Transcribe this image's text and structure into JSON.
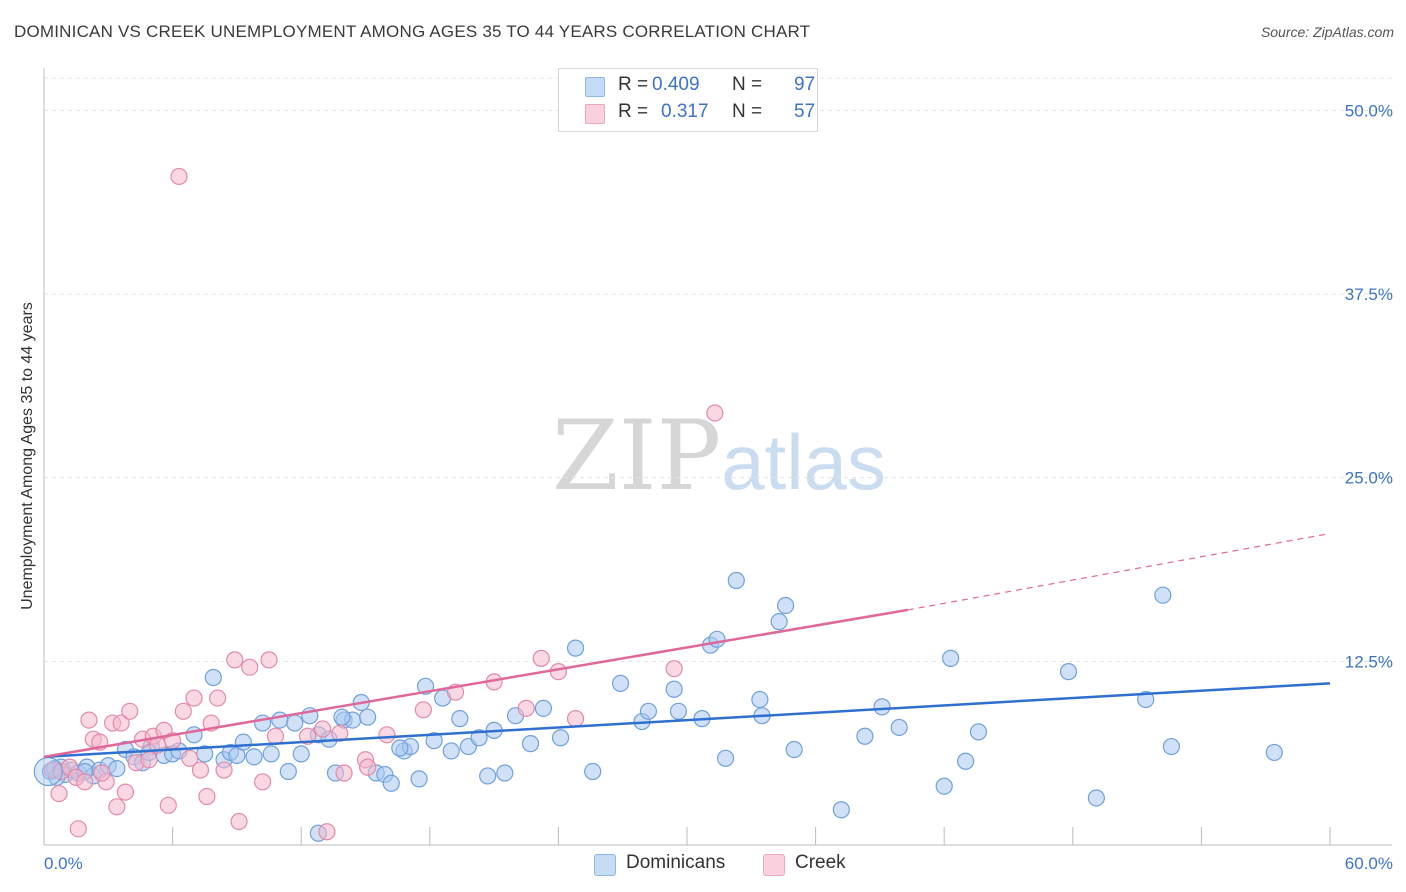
{
  "title": "DOMINICAN VS CREEK UNEMPLOYMENT AMONG AGES 35 TO 44 YEARS CORRELATION CHART",
  "source": "Source: ZipAtlas.com",
  "watermark": {
    "zip": "ZIP",
    "atlas": "atlas"
  },
  "legend": {
    "rows": [
      {
        "r_label": "R = ",
        "r_value": "0.409",
        "n_label": "N = ",
        "n_value": "97",
        "color": "#a9c9f0"
      },
      {
        "r_label": "R = ",
        "r_value": "0.317",
        "n_label": "N = ",
        "n_value": "57",
        "color": "#f4b8cc"
      }
    ]
  },
  "bottom_legend": [
    {
      "label": "Dominicans",
      "color": "#a9c9f0"
    },
    {
      "label": "Creek",
      "color": "#f4b8cc"
    }
  ],
  "chart_data": {
    "type": "scatter",
    "title": "DOMINICAN VS CREEK UNEMPLOYMENT AMONG AGES 35 TO 44 YEARS CORRELATION CHART",
    "ylabel": "Unemployment Among Ages 35 to 44 years",
    "xlabel": "",
    "xlim": [
      0,
      60
    ],
    "ylim": [
      0,
      50
    ],
    "x_tick_labels": [
      "0.0%",
      "60.0%"
    ],
    "y_ticks": [
      12.5,
      25.0,
      37.5,
      50.0
    ],
    "y_tick_labels": [
      "12.5%",
      "25.0%",
      "37.5%",
      "50.0%"
    ],
    "grid": true,
    "legend_position": "top-center",
    "series": [
      {
        "name": "Dominicans",
        "color": "#a9c9f0",
        "stroke": "#6fa0dc",
        "trend_color": "#2f6fcf",
        "trend": {
          "x": [
            0,
            60
          ],
          "y": [
            6.0,
            11.0
          ],
          "dashed_from": null
        },
        "points": [
          [
            0.3,
            5.0
          ],
          [
            0.5,
            5.2
          ],
          [
            0.8,
            5.3
          ],
          [
            1.0,
            4.8
          ],
          [
            1.3,
            5.1
          ],
          [
            1.6,
            4.9
          ],
          [
            2.0,
            5.3
          ],
          [
            2.3,
            4.7
          ],
          [
            2.6,
            5.1
          ],
          [
            3.0,
            5.4
          ],
          [
            3.4,
            5.2
          ],
          [
            3.8,
            6.5
          ],
          [
            4.2,
            6.0
          ],
          [
            4.6,
            5.6
          ],
          [
            5.0,
            6.7
          ],
          [
            5.6,
            6.1
          ],
          [
            6.0,
            6.2
          ],
          [
            6.3,
            6.4
          ],
          [
            7.0,
            7.5
          ],
          [
            7.5,
            6.2
          ],
          [
            7.9,
            11.4
          ],
          [
            8.4,
            5.8
          ],
          [
            8.7,
            6.3
          ],
          [
            9.0,
            6.1
          ],
          [
            9.3,
            7.0
          ],
          [
            9.8,
            6.0
          ],
          [
            10.2,
            8.3
          ],
          [
            10.6,
            6.2
          ],
          [
            11.0,
            8.5
          ],
          [
            11.4,
            5.0
          ],
          [
            11.7,
            8.3
          ],
          [
            12.0,
            6.2
          ],
          [
            12.4,
            8.8
          ],
          [
            12.8,
            7.5
          ],
          [
            13.3,
            7.2
          ],
          [
            13.6,
            4.9
          ],
          [
            14.0,
            8.5
          ],
          [
            14.4,
            8.5
          ],
          [
            14.8,
            9.7
          ],
          [
            15.1,
            8.7
          ],
          [
            15.5,
            4.9
          ],
          [
            15.9,
            4.8
          ],
          [
            16.2,
            4.2
          ],
          [
            16.8,
            6.4
          ],
          [
            17.1,
            6.7
          ],
          [
            17.5,
            4.5
          ],
          [
            17.8,
            10.8
          ],
          [
            18.2,
            7.1
          ],
          [
            18.6,
            10.0
          ],
          [
            19.0,
            6.4
          ],
          [
            19.4,
            8.6
          ],
          [
            19.8,
            6.7
          ],
          [
            20.3,
            7.3
          ],
          [
            20.7,
            4.7
          ],
          [
            21.0,
            7.8
          ],
          [
            21.5,
            4.9
          ],
          [
            22.0,
            8.8
          ],
          [
            22.7,
            6.9
          ],
          [
            23.3,
            9.3
          ],
          [
            24.1,
            7.3
          ],
          [
            24.8,
            13.4
          ],
          [
            25.6,
            5.0
          ],
          [
            26.9,
            11.0
          ],
          [
            27.9,
            8.4
          ],
          [
            28.2,
            9.1
          ],
          [
            29.4,
            10.6
          ],
          [
            29.6,
            9.1
          ],
          [
            30.7,
            8.6
          ],
          [
            31.1,
            13.6
          ],
          [
            31.4,
            14.0
          ],
          [
            31.8,
            5.9
          ],
          [
            32.3,
            18.0
          ],
          [
            33.4,
            9.9
          ],
          [
            33.5,
            8.8
          ],
          [
            34.3,
            15.2
          ],
          [
            34.6,
            16.3
          ],
          [
            35.0,
            6.5
          ],
          [
            37.2,
            2.4
          ],
          [
            38.3,
            7.4
          ],
          [
            39.1,
            9.4
          ],
          [
            39.9,
            8.0
          ],
          [
            42.0,
            4.0
          ],
          [
            42.3,
            12.7
          ],
          [
            43.0,
            5.7
          ],
          [
            43.6,
            7.7
          ],
          [
            47.8,
            11.8
          ],
          [
            49.1,
            3.2
          ],
          [
            51.4,
            9.9
          ],
          [
            52.2,
            17.0
          ],
          [
            52.6,
            6.7
          ],
          [
            57.4,
            6.3
          ],
          [
            0.6,
            4.6
          ],
          [
            1.9,
            5.0
          ],
          [
            4.9,
            6.3
          ],
          [
            13.9,
            8.7
          ],
          [
            16.6,
            6.6
          ],
          [
            12.8,
            0.8
          ]
        ]
      },
      {
        "name": "Creek",
        "color": "#f4b8cc",
        "stroke": "#e38aa9",
        "trend_color": "#e0679a",
        "trend": {
          "x": [
            0,
            40.3
          ],
          "y": [
            6.0,
            16.0
          ],
          "dashed_to": [
            60,
            21.2
          ]
        },
        "points": [
          [
            0.4,
            5.1
          ],
          [
            0.8,
            5.0
          ],
          [
            1.2,
            5.3
          ],
          [
            1.5,
            4.6
          ],
          [
            1.9,
            4.3
          ],
          [
            2.1,
            8.5
          ],
          [
            2.3,
            7.2
          ],
          [
            2.6,
            7.0
          ],
          [
            2.9,
            4.3
          ],
          [
            3.2,
            8.3
          ],
          [
            3.4,
            2.6
          ],
          [
            3.6,
            8.3
          ],
          [
            3.8,
            3.6
          ],
          [
            4.0,
            9.1
          ],
          [
            4.3,
            5.6
          ],
          [
            4.6,
            7.2
          ],
          [
            4.9,
            5.8
          ],
          [
            5.1,
            7.4
          ],
          [
            5.3,
            6.8
          ],
          [
            5.6,
            7.8
          ],
          [
            5.8,
            2.7
          ],
          [
            6.0,
            7.1
          ],
          [
            6.3,
            45.5
          ],
          [
            6.5,
            9.1
          ],
          [
            6.8,
            5.9
          ],
          [
            7.0,
            10.0
          ],
          [
            7.3,
            5.1
          ],
          [
            7.6,
            3.3
          ],
          [
            7.8,
            8.3
          ],
          [
            8.1,
            10.0
          ],
          [
            8.4,
            5.1
          ],
          [
            8.9,
            12.6
          ],
          [
            9.1,
            1.6
          ],
          [
            9.6,
            12.1
          ],
          [
            10.2,
            4.3
          ],
          [
            10.5,
            12.6
          ],
          [
            10.8,
            7.4
          ],
          [
            12.3,
            7.4
          ],
          [
            13.0,
            7.9
          ],
          [
            13.8,
            7.6
          ],
          [
            14.0,
            4.9
          ],
          [
            15.0,
            5.8
          ],
          [
            16.0,
            7.5
          ],
          [
            17.7,
            9.2
          ],
          [
            19.2,
            10.4
          ],
          [
            21.0,
            11.1
          ],
          [
            22.5,
            9.3
          ],
          [
            23.2,
            12.7
          ],
          [
            24.0,
            11.8
          ],
          [
            24.8,
            8.6
          ],
          [
            29.4,
            12.0
          ],
          [
            31.3,
            29.4
          ],
          [
            1.6,
            1.1
          ],
          [
            0.7,
            3.5
          ],
          [
            2.7,
            4.9
          ],
          [
            13.2,
            0.9
          ],
          [
            15.1,
            5.3
          ]
        ]
      }
    ]
  }
}
